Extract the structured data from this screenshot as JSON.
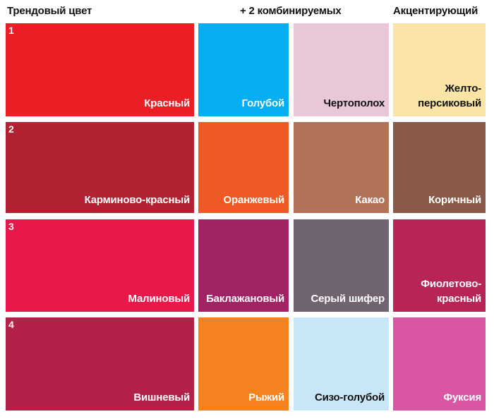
{
  "headers": {
    "trend": "Трендовый цвет",
    "combined": "+ 2 комбинируемых",
    "accent": "Акцентирующий"
  },
  "rows": [
    {
      "number": "1",
      "cells": [
        {
          "label": "Красный",
          "color": "#ea1f25",
          "text_color": "#ffffff"
        },
        {
          "label": "Голубой",
          "color": "#05aef0",
          "text_color": "#ffffff"
        },
        {
          "label": "Чертополох",
          "color": "#e8c7d8",
          "text_color": "#111111"
        },
        {
          "label": "Желто-\nперсиковый",
          "color": "#fbe5a6",
          "text_color": "#111111"
        }
      ]
    },
    {
      "number": "2",
      "cells": [
        {
          "label": "Карминово-красный",
          "color": "#b32233",
          "text_color": "#ffffff"
        },
        {
          "label": "Оранжевый",
          "color": "#ee5a25",
          "text_color": "#ffffff"
        },
        {
          "label": "Какао",
          "color": "#b07357",
          "text_color": "#ffffff"
        },
        {
          "label": "Коричный",
          "color": "#8a5a48",
          "text_color": "#ffffff"
        }
      ]
    },
    {
      "number": "3",
      "cells": [
        {
          "label": "Малиновый",
          "color": "#e8194a",
          "text_color": "#ffffff"
        },
        {
          "label": "Баклажановый",
          "color": "#a12364",
          "text_color": "#ffffff"
        },
        {
          "label": "Серый шифер",
          "color": "#706470",
          "text_color": "#ffffff"
        },
        {
          "label": "Фиолетово-\nкрасный",
          "color": "#b82453",
          "text_color": "#ffffff"
        }
      ]
    },
    {
      "number": "4",
      "cells": [
        {
          "label": "Вишневый",
          "color": "#b32149",
          "text_color": "#ffffff"
        },
        {
          "label": "Рыжий",
          "color": "#f4831f",
          "text_color": "#ffffff"
        },
        {
          "label": "Сизо-голубой",
          "color": "#c9e6f6",
          "text_color": "#111111"
        },
        {
          "label": "Фуксия",
          "color": "#d956a3",
          "text_color": "#ffffff"
        }
      ]
    }
  ]
}
